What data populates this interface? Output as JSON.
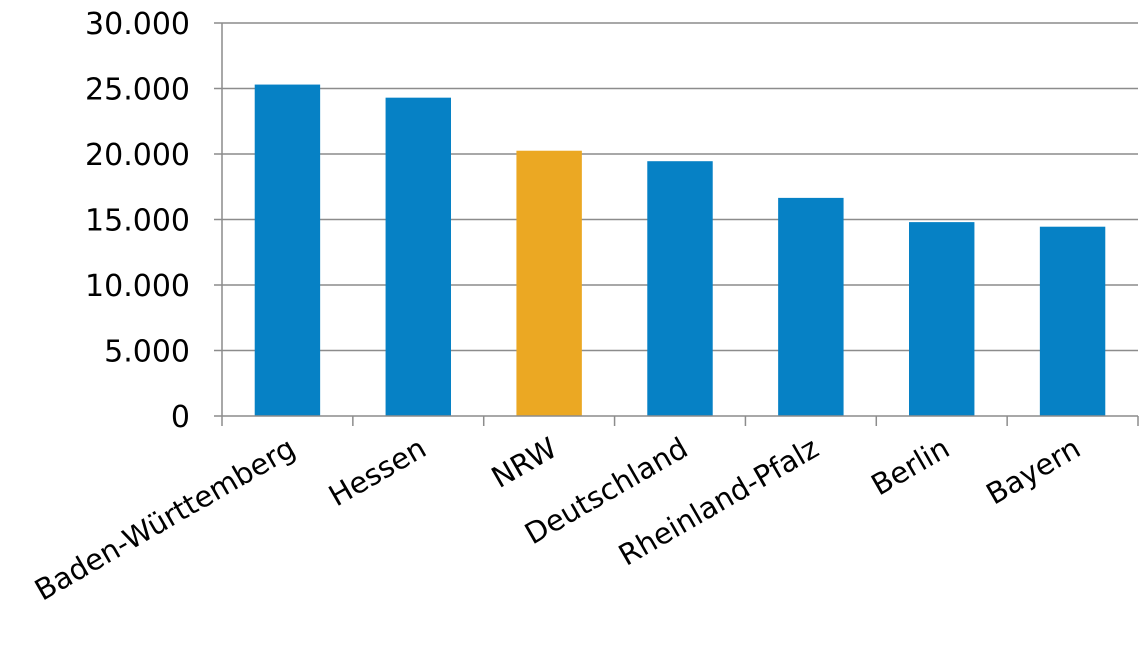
{
  "chart_data": {
    "type": "bar",
    "title": "",
    "xlabel": "",
    "ylabel": "",
    "categories": [
      "Baden-Württemberg",
      "Hessen",
      "NRW",
      "Deutschland",
      "Rheinland-Pfalz",
      "Berlin",
      "Bayern"
    ],
    "values": [
      25300,
      24300,
      20250,
      19450,
      16650,
      14800,
      14450
    ],
    "highlight_category": "NRW",
    "colors": {
      "default": "#0681c5",
      "highlight": "#eba823"
    },
    "ylim": [
      0,
      30000
    ],
    "yticks": [
      0,
      5000,
      10000,
      15000,
      20000,
      25000,
      30000
    ],
    "ytick_labels": [
      "0",
      "5.000",
      "10.000",
      "15.000",
      "20.000",
      "25.000",
      "30.000"
    ],
    "grid": true,
    "legend": "none"
  }
}
